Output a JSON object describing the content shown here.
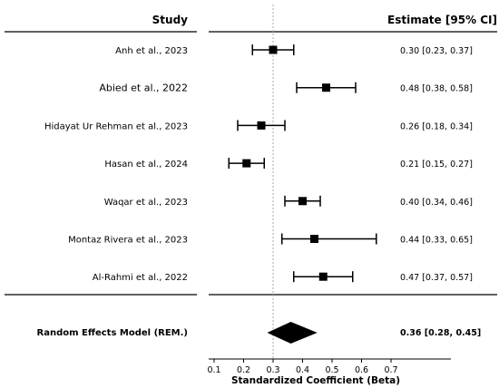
{
  "headers": {
    "study": "Study",
    "estimate": "Estimate [95% CI]"
  },
  "chart_data": {
    "type": "forest",
    "studies": [
      {
        "label": "Anh et al., 2023",
        "estimate": 0.3,
        "ci": [
          0.23,
          0.37
        ],
        "text": "0.30 [0.23, 0.37]"
      },
      {
        "label": "Abied et al., 2022",
        "estimate": 0.48,
        "ci": [
          0.38,
          0.58
        ],
        "text": "0.48 [0.38, 0.58]"
      },
      {
        "label": "Hidayat Ur Rehman et al., 2023",
        "estimate": 0.26,
        "ci": [
          0.18,
          0.34
        ],
        "text": "0.26 [0.18, 0.34]"
      },
      {
        "label": "Hasan et al., 2024",
        "estimate": 0.21,
        "ci": [
          0.15,
          0.27
        ],
        "text": "0.21 [0.15, 0.27]"
      },
      {
        "label": "Waqar et al., 2023",
        "estimate": 0.4,
        "ci": [
          0.34,
          0.46
        ],
        "text": "0.40 [0.34, 0.46]"
      },
      {
        "label": "Montaz Rivera et al., 2023",
        "estimate": 0.44,
        "ci": [
          0.33,
          0.65
        ],
        "text": "0.44 [0.33, 0.65]"
      },
      {
        "label": "Al-Rahmi et al., 2022",
        "estimate": 0.47,
        "ci": [
          0.37,
          0.57
        ],
        "text": "0.47 [0.37, 0.57]"
      }
    ],
    "summary": {
      "label": "Random Effects Model (REM.)",
      "estimate": 0.36,
      "ci": [
        0.28,
        0.45
      ],
      "text": "0.36 [0.28, 0.45]"
    },
    "reference_line": 0.3,
    "xlabel": "Standardized Coefficient (Beta)",
    "xticks": [
      "0.1",
      "0.2",
      "0.3",
      "0.4",
      "0.5",
      "0.6",
      "0.7"
    ],
    "xlim": [
      0.07,
      0.8
    ]
  }
}
